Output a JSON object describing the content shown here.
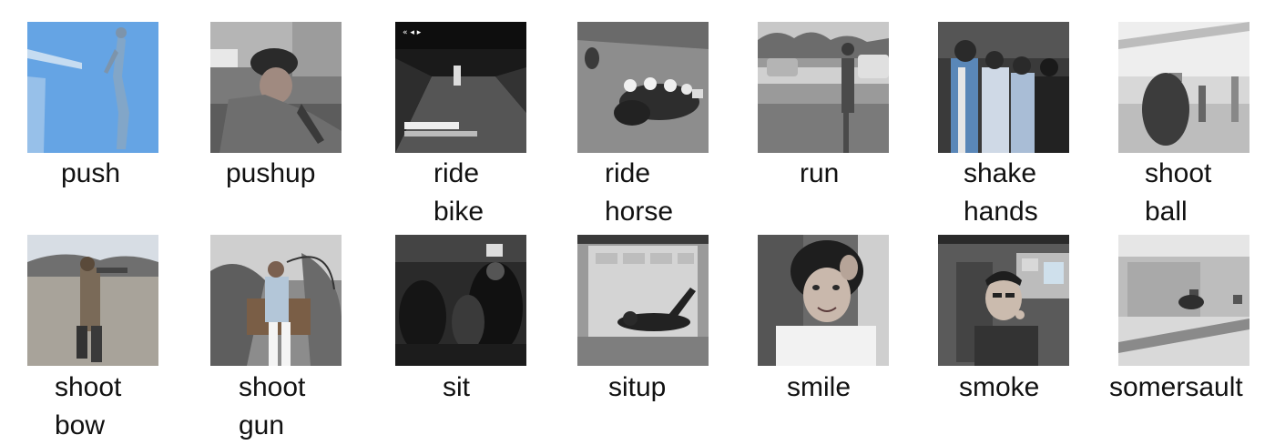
{
  "thumbnails": [
    {
      "label_line1": "push",
      "label_line2": "",
      "image_name": "push-thumbnail"
    },
    {
      "label_line1": "pushup",
      "label_line2": "",
      "image_name": "pushup-thumbnail"
    },
    {
      "label_line1": "ride",
      "label_line2": "bike",
      "image_name": "ride-bike-thumbnail"
    },
    {
      "label_line1": "ride",
      "label_line2": "horse",
      "image_name": "ride-horse-thumbnail"
    },
    {
      "label_line1": "run",
      "label_line2": "",
      "image_name": "run-thumbnail"
    },
    {
      "label_line1": "shake",
      "label_line2": "hands",
      "image_name": "shake-hands-thumbnail"
    },
    {
      "label_line1": "shoot",
      "label_line2": "ball",
      "image_name": "shoot-ball-thumbnail"
    },
    {
      "label_line1": "shoot",
      "label_line2": "bow",
      "image_name": "shoot-bow-thumbnail"
    },
    {
      "label_line1": "shoot",
      "label_line2": "gun",
      "image_name": "shoot-gun-thumbnail"
    },
    {
      "label_line1": "sit",
      "label_line2": "",
      "image_name": "sit-thumbnail"
    },
    {
      "label_line1": "situp",
      "label_line2": "",
      "image_name": "situp-thumbnail"
    },
    {
      "label_line1": "smile",
      "label_line2": "",
      "image_name": "smile-thumbnail"
    },
    {
      "label_line1": "smoke",
      "label_line2": "",
      "image_name": "smoke-thumbnail"
    },
    {
      "label_line1": "somersault",
      "label_line2": "",
      "image_name": "somersault-thumbnail"
    }
  ]
}
